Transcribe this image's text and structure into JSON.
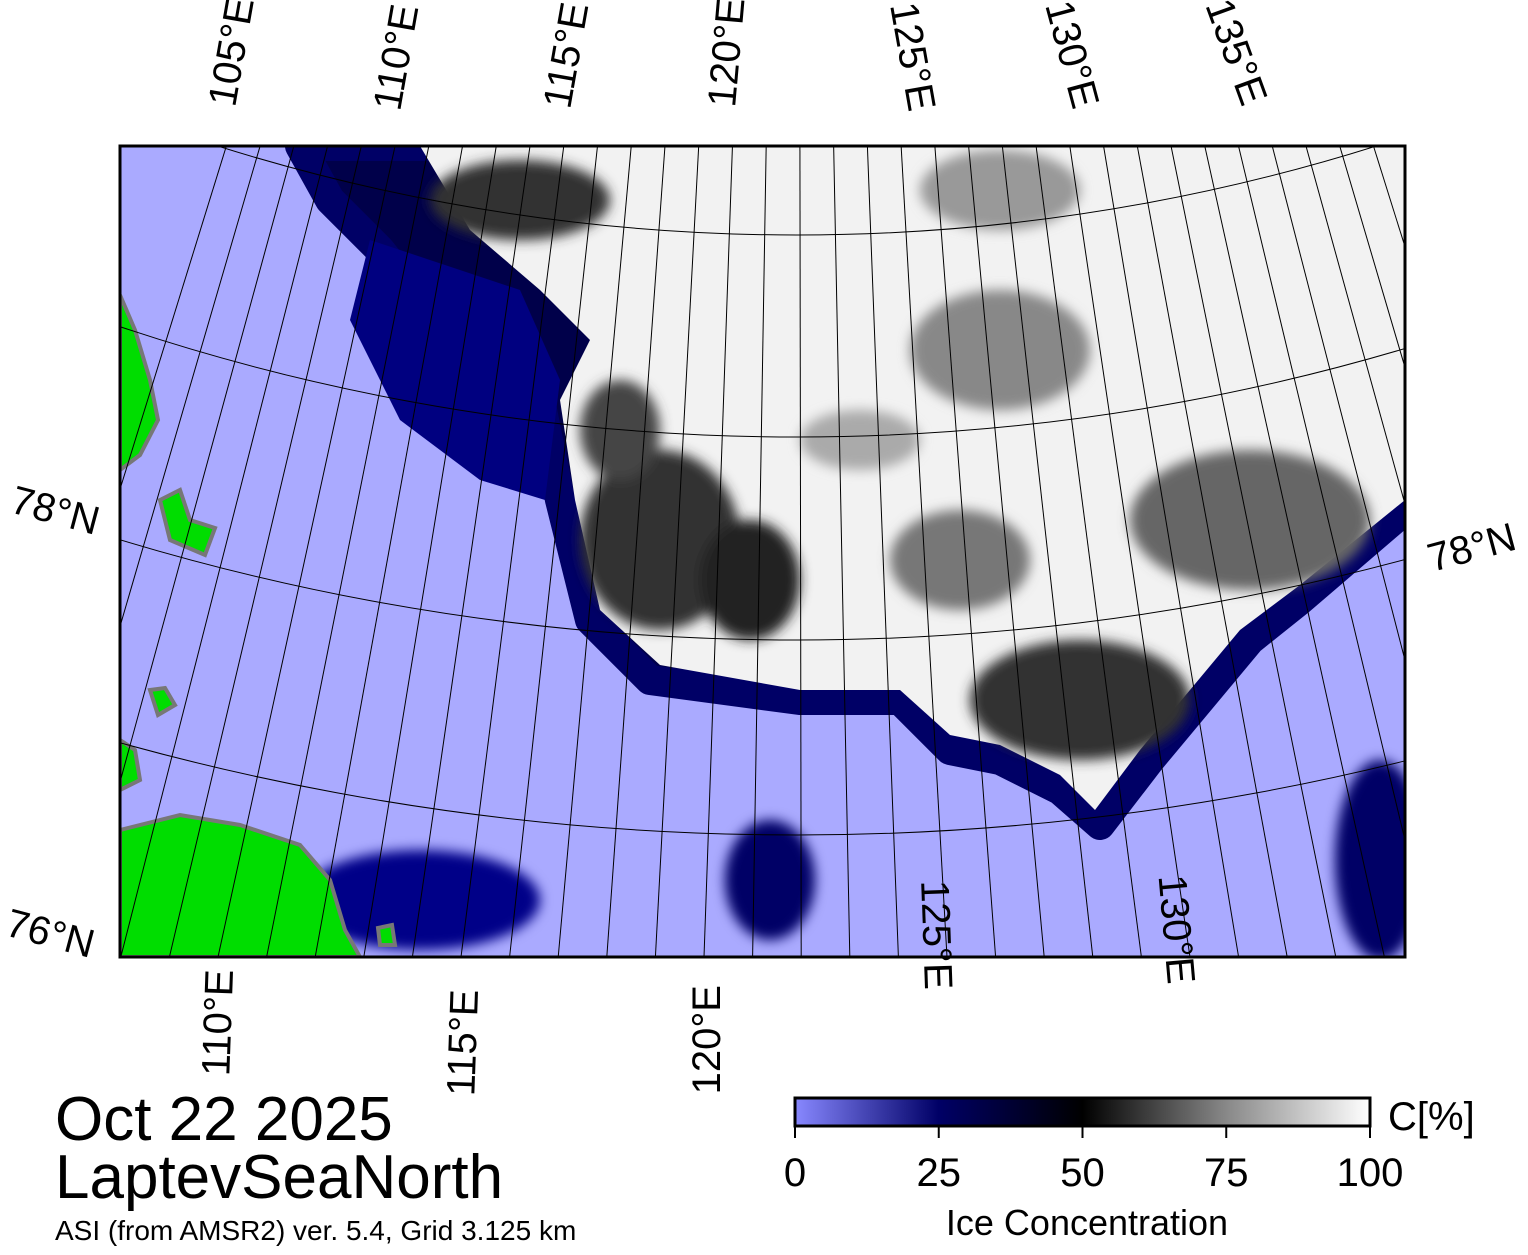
{
  "map": {
    "top_lon_labels": [
      "105°E",
      "110°E",
      "115°E",
      "120°E",
      "125°E",
      "130°E",
      "135°E"
    ],
    "bottom_lon_labels": [
      "110°E",
      "115°E",
      "120°E",
      "125°E",
      "130°E"
    ],
    "left_lat_labels": [
      "78°N",
      "76°N"
    ],
    "right_lat_labels": [
      "78°N"
    ]
  },
  "date": "Oct 22 2025",
  "region": "LaptevSeaNorth",
  "source": "ASI (from AMSR2) ver. 5.4,  Grid 3.125 km",
  "colorbar": {
    "lim": [
      0,
      100
    ],
    "ticks": [
      0,
      25,
      50,
      75,
      100
    ],
    "unit": "C[%]",
    "title": "Ice Concentration",
    "colors": [
      "#8888ff",
      "#000066",
      "#000000",
      "#888888",
      "#ffffff"
    ]
  }
}
